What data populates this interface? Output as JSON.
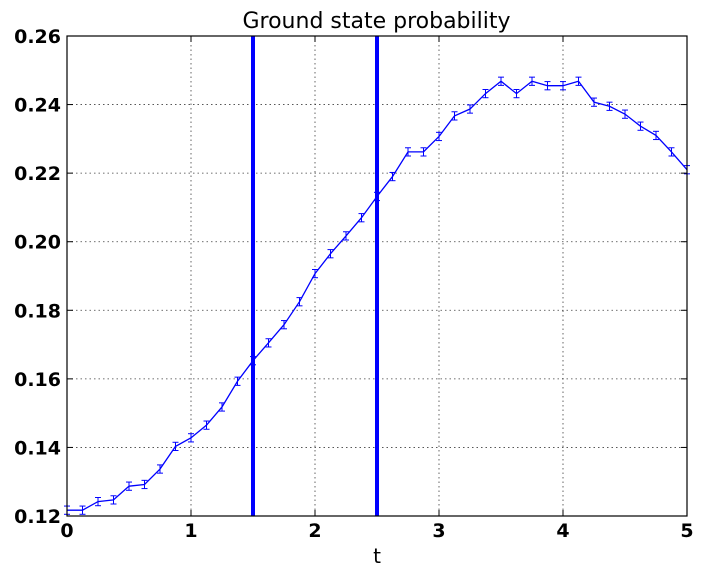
{
  "chart_data": {
    "type": "line",
    "title": "Ground state probability",
    "xlabel": "t",
    "ylabel": "",
    "xlim": [
      0,
      5
    ],
    "ylim": [
      0.12,
      0.26
    ],
    "grid": true,
    "x_ticks": [
      "0",
      "1",
      "2",
      "3",
      "4",
      "5"
    ],
    "y_ticks": [
      "0.12",
      "0.14",
      "0.16",
      "0.18",
      "0.20",
      "0.22",
      "0.24",
      "0.26"
    ],
    "series": [
      {
        "color": "#0000ff",
        "x": [
          0.0,
          0.125,
          0.25,
          0.375,
          0.5,
          0.625,
          0.75,
          0.875,
          1.0,
          1.125,
          1.25,
          1.375,
          1.5,
          1.625,
          1.75,
          1.875,
          2.0,
          2.125,
          2.25,
          2.375,
          2.5,
          2.625,
          2.75,
          2.875,
          3.0,
          3.125,
          3.25,
          3.375,
          3.5,
          3.625,
          3.75,
          3.875,
          4.0,
          4.125,
          4.25,
          4.375,
          4.5,
          4.625,
          4.75,
          4.875,
          5.0
        ],
        "y": [
          0.1217,
          0.1217,
          0.1242,
          0.1247,
          0.1287,
          0.1292,
          0.1337,
          0.1403,
          0.1428,
          0.1465,
          0.1518,
          0.1593,
          0.1653,
          0.1705,
          0.1758,
          0.1825,
          0.1907,
          0.1965,
          0.2017,
          0.207,
          0.2132,
          0.219,
          0.2262,
          0.2262,
          0.2307,
          0.2367,
          0.2387,
          0.2432,
          0.2468,
          0.2432,
          0.2468,
          0.2455,
          0.2455,
          0.2468,
          0.2407,
          0.2395,
          0.2372,
          0.2337,
          0.231,
          0.2262,
          0.221
        ],
        "error": 0.0012
      }
    ],
    "vlines": [
      {
        "x": 1.5,
        "color": "#0000ff"
      },
      {
        "x": 2.5,
        "color": "#0000ff"
      }
    ]
  }
}
